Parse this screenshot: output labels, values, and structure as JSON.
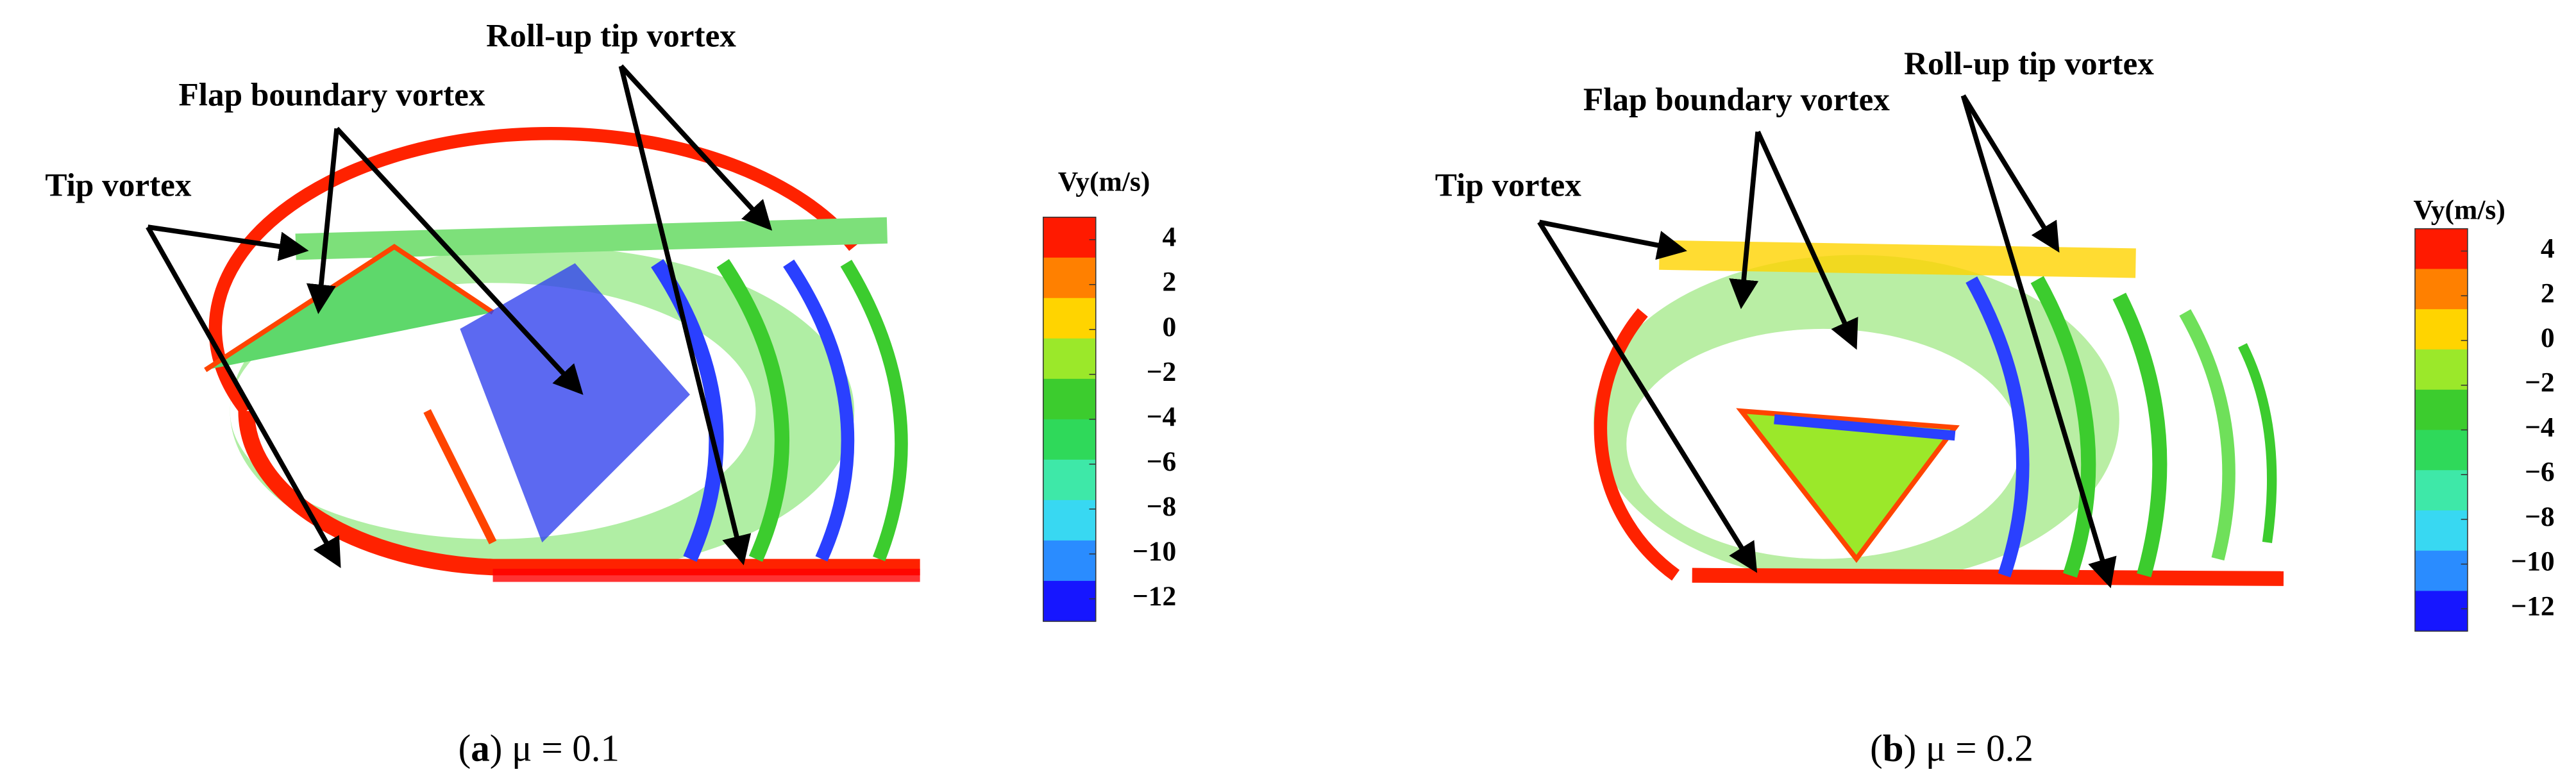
{
  "panels": [
    {
      "caption": [
        "(",
        "a",
        ") μ = 0.1"
      ],
      "annotations": [
        "Roll-up tip vortex",
        "Flap boundary vortex",
        "Tip vortex"
      ],
      "colorbar": {
        "title": "Vy(m/s)",
        "lim": [
          -13,
          5
        ],
        "colors": [
          "#ff1a00",
          "#ff8000",
          "#ffd400",
          "#9be82a",
          "#3ccc2e",
          "#2fd95a",
          "#3ee8a8",
          "#38d8f2",
          "#2a8cff",
          "#1616ff"
        ],
        "ticks": [
          4,
          2,
          0,
          {
            "value": -2,
            "label": "−2"
          },
          {
            "value": -4,
            "label": "−4"
          },
          {
            "value": -6,
            "label": "−6"
          },
          {
            "value": -8,
            "label": "−8"
          },
          {
            "value": -10,
            "label": "−10"
          },
          {
            "value": -12,
            "label": "−12"
          }
        ]
      }
    },
    {
      "caption": [
        "(",
        "b",
        ") μ = 0.2"
      ],
      "annotations": [
        "Roll-up tip vortex",
        "Flap boundary vortex",
        "Tip vortex"
      ],
      "colorbar": {
        "title": "Vy(m/s)",
        "lim": [
          -13,
          5
        ],
        "colors": [
          "#ff1a00",
          "#ff8000",
          "#ffd400",
          "#9be82a",
          "#3ccc2e",
          "#2fd95a",
          "#3ee8a8",
          "#38d8f2",
          "#2a8cff",
          "#1616ff"
        ],
        "ticks": [
          4,
          2,
          0,
          {
            "value": -2,
            "label": "−2"
          },
          {
            "value": -4,
            "label": "−4"
          },
          {
            "value": -6,
            "label": "−6"
          },
          {
            "value": -8,
            "label": "−8"
          },
          {
            "value": -10,
            "label": "−10"
          },
          {
            "value": -12,
            "label": "−12"
          }
        ]
      }
    }
  ]
}
